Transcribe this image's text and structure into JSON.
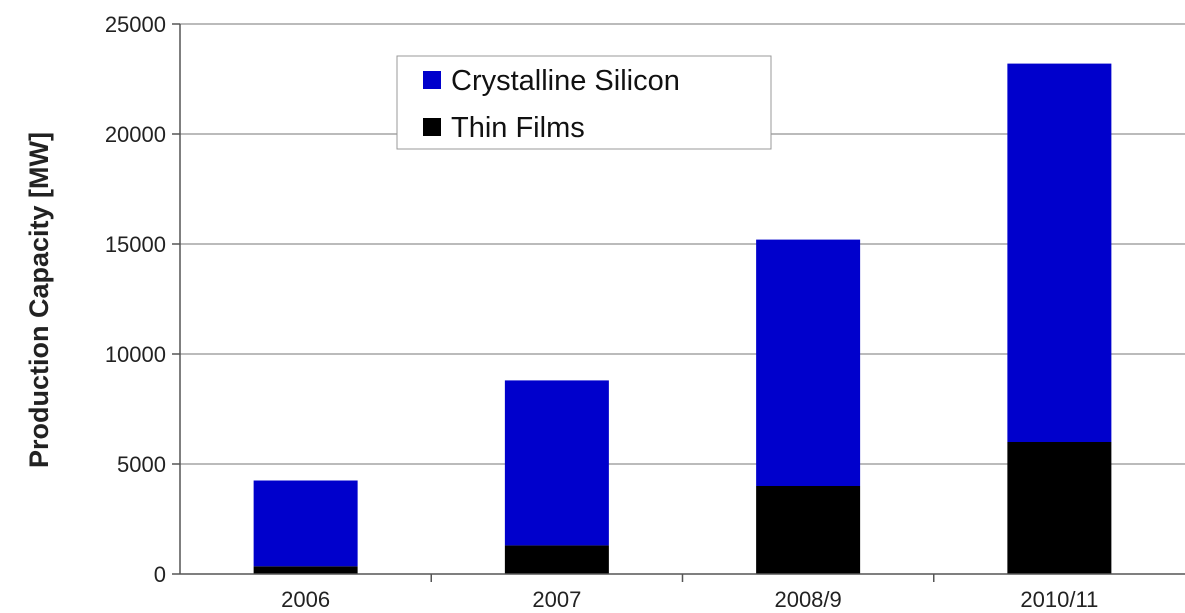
{
  "chart_data": {
    "type": "bar",
    "stacked": true,
    "categories": [
      "2006",
      "2007",
      "2008/9",
      "2010/11"
    ],
    "series": [
      {
        "name": "Thin Films",
        "values": [
          350,
          1300,
          4000,
          6000
        ],
        "color": "#000000"
      },
      {
        "name": "Crystalline Silicon",
        "values": [
          3900,
          7500,
          11200,
          17200
        ],
        "color": "#0000cc"
      }
    ],
    "title": "",
    "xlabel": "",
    "ylabel": "Production Capacity [MW]",
    "ylim": [
      0,
      25000
    ],
    "yticks": [
      0,
      5000,
      10000,
      15000,
      20000,
      25000
    ],
    "ytick_labels": [
      "0",
      "5000",
      "10000",
      "15000",
      "20000",
      "25000"
    ],
    "grid": "horizontal",
    "legend": {
      "placement": "top-center",
      "entries": [
        "Crystalline Silicon",
        "Thin Films"
      ]
    }
  }
}
